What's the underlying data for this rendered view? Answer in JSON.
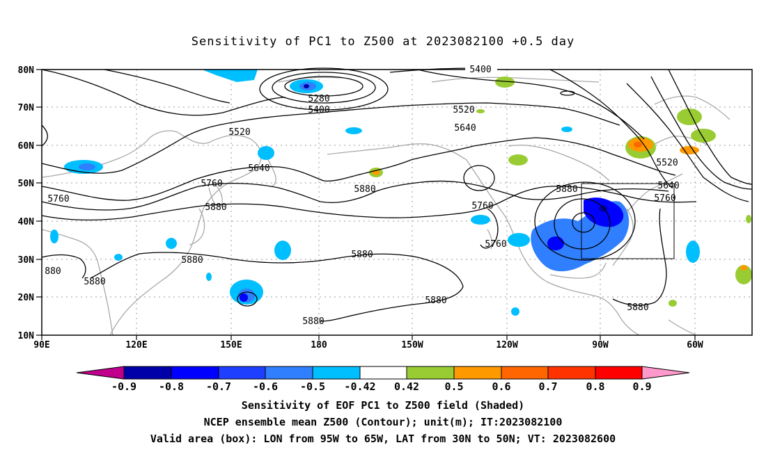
{
  "title": "Sensitivity of PC1 to Z500 at 2023082100 +0.5 day",
  "axes": {
    "lat_labels": [
      "80N",
      "70N",
      "60N",
      "50N",
      "40N",
      "30N",
      "20N",
      "10N"
    ],
    "lon_labels": [
      "90E",
      "120E",
      "150E",
      "180",
      "150W",
      "120W",
      "90W",
      "60W"
    ]
  },
  "contour_labels": [
    "5400",
    "5280",
    "5400",
    "5520",
    "5640",
    "5520",
    "5640",
    "5760",
    "5880",
    "5760",
    "5880",
    "5760",
    "5760",
    "5520",
    "5640",
    "5760",
    "5880",
    "880",
    "5880",
    "5880",
    "5880",
    "5880",
    "5880",
    "5880"
  ],
  "colorbar": {
    "labels": [
      "-0.9",
      "-0.8",
      "-0.7",
      "-0.6",
      "-0.5",
      "-0.42",
      "0.42",
      "0.5",
      "0.6",
      "0.7",
      "0.8",
      "0.9"
    ],
    "colors": [
      "#c0008c",
      "#0000a8",
      "#0000ff",
      "#1f3fff",
      "#2f7fff",
      "#00bfff",
      "#ffffff",
      "#99cc33",
      "#ff9900",
      "#ff6600",
      "#ff3300",
      "#ff0000",
      "#ff99cc"
    ]
  },
  "captions": [
    "Sensitivity of EOF PC1 to Z500 field (Shaded)",
    "NCEP ensemble mean Z500 (Contour); unit(m); IT:2023082100",
    "Valid area (box): LON from 95W to 65W, LAT from 30N to 50N; VT: 2023082600"
  ]
}
